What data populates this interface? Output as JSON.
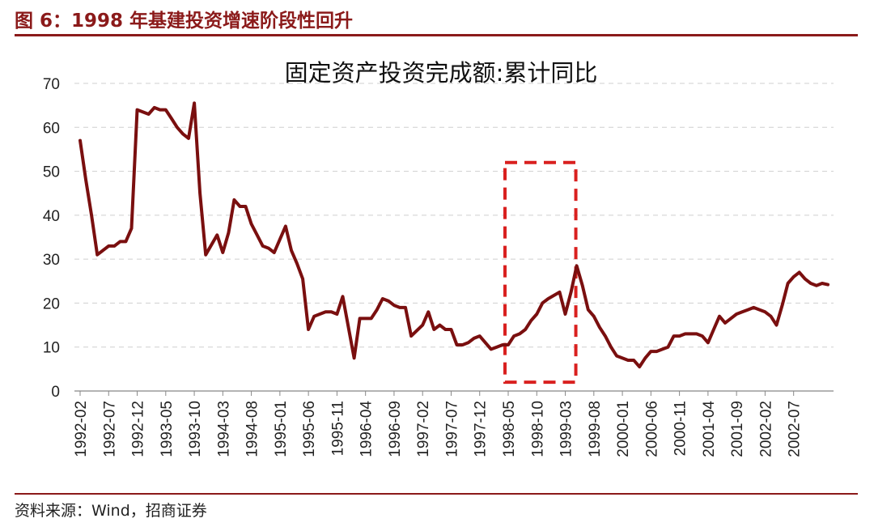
{
  "header": {
    "figure_title": "图 6：1998 年基建投资增速阶段性回升"
  },
  "footer": {
    "source": "资料来源：Wind，招商证券"
  },
  "colors": {
    "line": "#7a0f0f",
    "highlight": "#d9201f",
    "rule": "#8b1a1a",
    "grid": "#cfcfcf"
  },
  "chart_data": {
    "type": "line",
    "title": "固定资产投资完成额:累计同比",
    "xlabel": "",
    "ylabel": "",
    "ylim": [
      0,
      70
    ],
    "yticks": [
      0,
      10,
      20,
      30,
      40,
      50,
      60,
      70
    ],
    "grid": true,
    "xticks": [
      "1992-02",
      "1992-07",
      "1992-12",
      "1993-05",
      "1993-10",
      "1994-03",
      "1994-08",
      "1995-01",
      "1995-06",
      "1995-11",
      "1996-04",
      "1996-09",
      "1997-02",
      "1997-07",
      "1997-12",
      "1998-05",
      "1998-10",
      "1999-03",
      "1999-08",
      "2000-01",
      "2000-06",
      "2000-11",
      "2001-04",
      "2001-09",
      "2002-02",
      "2002-07"
    ],
    "highlight": {
      "x_start": "1998-05",
      "x_end": "1999-03",
      "y_range": [
        2,
        52
      ]
    },
    "series": [
      {
        "points": [
          [
            "1992-02",
            57
          ],
          [
            "1992-03",
            48
          ],
          [
            "1992-04",
            40
          ],
          [
            "1992-05",
            31
          ],
          [
            "1992-06",
            32
          ],
          [
            "1992-07",
            33
          ],
          [
            "1992-08",
            33
          ],
          [
            "1992-09",
            34
          ],
          [
            "1992-10",
            34
          ],
          [
            "1992-11",
            37
          ],
          [
            "1992-12",
            64
          ],
          [
            "1993-02",
            63
          ],
          [
            "1993-03",
            64.5
          ],
          [
            "1993-04",
            64
          ],
          [
            "1993-05",
            64
          ],
          [
            "1993-06",
            62
          ],
          [
            "1993-07",
            60
          ],
          [
            "1993-08",
            58.5
          ],
          [
            "1993-09",
            57.5
          ],
          [
            "1993-10",
            65.5
          ],
          [
            "1993-11",
            45
          ],
          [
            "1993-12",
            31
          ],
          [
            "1994-02",
            35.5
          ],
          [
            "1994-03",
            31.5
          ],
          [
            "1994-04",
            36
          ],
          [
            "1994-05",
            43.5
          ],
          [
            "1994-06",
            42
          ],
          [
            "1994-07",
            42
          ],
          [
            "1994-08",
            38
          ],
          [
            "1994-09",
            35.5
          ],
          [
            "1994-10",
            33
          ],
          [
            "1994-11",
            32.5
          ],
          [
            "1994-12",
            31.5
          ],
          [
            "1995-02",
            37.5
          ],
          [
            "1995-03",
            32
          ],
          [
            "1995-04",
            29
          ],
          [
            "1995-05",
            25.5
          ],
          [
            "1995-06",
            14
          ],
          [
            "1995-07",
            17
          ],
          [
            "1995-08",
            17.5
          ],
          [
            "1995-09",
            18
          ],
          [
            "1995-10",
            18
          ],
          [
            "1995-11",
            17.5
          ],
          [
            "1995-12",
            21.5
          ],
          [
            "1996-02",
            7.5
          ],
          [
            "1996-03",
            16.5
          ],
          [
            "1996-04",
            16.5
          ],
          [
            "1996-05",
            16.5
          ],
          [
            "1996-06",
            18.5
          ],
          [
            "1996-07",
            21
          ],
          [
            "1996-08",
            20.5
          ],
          [
            "1996-09",
            19.5
          ],
          [
            "1996-10",
            19
          ],
          [
            "1996-11",
            19
          ],
          [
            "1996-12",
            12.5
          ],
          [
            "1997-02",
            15
          ],
          [
            "1997-03",
            18
          ],
          [
            "1997-04",
            14
          ],
          [
            "1997-05",
            15
          ],
          [
            "1997-06",
            14
          ],
          [
            "1997-07",
            14
          ],
          [
            "1997-08",
            10.5
          ],
          [
            "1997-09",
            10.5
          ],
          [
            "1997-10",
            11
          ],
          [
            "1997-11",
            12
          ],
          [
            "1997-12",
            12.5
          ],
          [
            "1998-02",
            9.5
          ],
          [
            "1998-03",
            10
          ],
          [
            "1998-04",
            10.5
          ],
          [
            "1998-05",
            10.5
          ],
          [
            "1998-06",
            12.5
          ],
          [
            "1998-07",
            13
          ],
          [
            "1998-08",
            14
          ],
          [
            "1998-09",
            16
          ],
          [
            "1998-10",
            17.5
          ],
          [
            "1998-11",
            20
          ],
          [
            "1998-12",
            21
          ],
          [
            "1999-02",
            22.5
          ],
          [
            "1999-03",
            17.5
          ],
          [
            "1999-04",
            22.5
          ],
          [
            "1999-05",
            28.5
          ],
          [
            "1999-06",
            24
          ],
          [
            "1999-07",
            18.5
          ],
          [
            "1999-08",
            17
          ],
          [
            "1999-09",
            14.5
          ],
          [
            "1999-10",
            12.5
          ],
          [
            "1999-11",
            10
          ],
          [
            "1999-12",
            8
          ],
          [
            "2000-02",
            7
          ],
          [
            "2000-03",
            7
          ],
          [
            "2000-04",
            5.5
          ],
          [
            "2000-05",
            7.5
          ],
          [
            "2000-06",
            9
          ],
          [
            "2000-07",
            9
          ],
          [
            "2000-08",
            9.5
          ],
          [
            "2000-09",
            10
          ],
          [
            "2000-10",
            12.5
          ],
          [
            "2000-11",
            12.5
          ],
          [
            "2000-12",
            13
          ],
          [
            "2001-02",
            13
          ],
          [
            "2001-03",
            12.5
          ],
          [
            "2001-04",
            11
          ],
          [
            "2001-05",
            14
          ],
          [
            "2001-06",
            17
          ],
          [
            "2001-07",
            15.5
          ],
          [
            "2001-08",
            16.5
          ],
          [
            "2001-09",
            17.5
          ],
          [
            "2001-10",
            18
          ],
          [
            "2001-11",
            18.5
          ],
          [
            "2001-12",
            19
          ],
          [
            "2002-02",
            18
          ],
          [
            "2002-03",
            17
          ],
          [
            "2002-04",
            15
          ],
          [
            "2002-05",
            19.5
          ],
          [
            "2002-06",
            24.5
          ],
          [
            "2002-07",
            26
          ],
          [
            "2002-08",
            27
          ],
          [
            "2002-09",
            25.5
          ],
          [
            "2002-10",
            24.5
          ],
          [
            "2002-11",
            24
          ],
          [
            "2002-12",
            24.5
          ],
          [
            "2003-01",
            24.2
          ]
        ]
      }
    ]
  }
}
